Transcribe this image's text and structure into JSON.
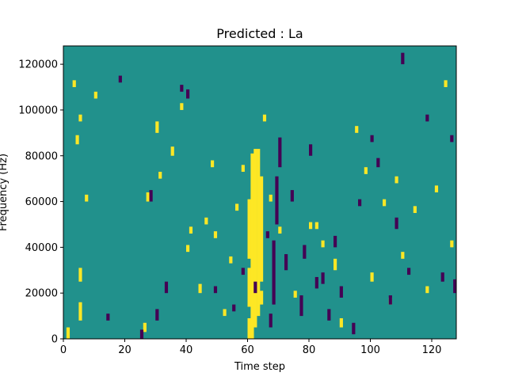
{
  "chart_data": {
    "type": "heatmap",
    "title": "Predicted : La",
    "xlabel": "Time step",
    "ylabel": "Frequency (Hz)",
    "xlim": [
      0,
      128
    ],
    "ylim": [
      0,
      128000
    ],
    "x_ticks": [
      0,
      20,
      40,
      60,
      80,
      100,
      120
    ],
    "y_ticks": [
      0,
      20000,
      40000,
      60000,
      80000,
      100000,
      120000
    ],
    "x_tick_labels": [
      "0",
      "20",
      "40",
      "60",
      "80",
      "100",
      "120"
    ],
    "y_tick_labels": [
      "0",
      "20000",
      "40000",
      "60000",
      "80000",
      "100000",
      "120000"
    ],
    "colors": {
      "background": "#21918c",
      "high": "#fde725",
      "low": "#440154"
    },
    "grid": false,
    "n_freq_bins": 128,
    "bin_width_hz": 1000,
    "high_cells": [
      [
        1,
        0,
        4
      ],
      [
        5,
        8,
        15
      ],
      [
        5,
        25,
        30
      ],
      [
        7,
        60,
        62
      ],
      [
        4,
        85,
        88
      ],
      [
        5,
        95,
        97
      ],
      [
        10,
        105,
        107
      ],
      [
        3,
        110,
        112
      ],
      [
        26,
        3,
        6
      ],
      [
        27,
        60,
        63
      ],
      [
        30,
        90,
        94
      ],
      [
        31,
        70,
        72
      ],
      [
        35,
        80,
        83
      ],
      [
        38,
        100,
        102
      ],
      [
        40,
        38,
        40
      ],
      [
        41,
        46,
        48
      ],
      [
        44,
        20,
        23
      ],
      [
        46,
        50,
        52
      ],
      [
        48,
        75,
        77
      ],
      [
        49,
        44,
        46
      ],
      [
        52,
        10,
        12
      ],
      [
        54,
        33,
        35
      ],
      [
        56,
        56,
        58
      ],
      [
        58,
        73,
        75
      ],
      [
        60,
        0,
        8
      ],
      [
        60,
        14,
        30
      ],
      [
        60,
        35,
        60
      ],
      [
        61,
        0,
        80
      ],
      [
        62,
        5,
        82
      ],
      [
        63,
        10,
        82
      ],
      [
        64,
        15,
        20
      ],
      [
        64,
        25,
        70
      ],
      [
        65,
        95,
        97
      ],
      [
        67,
        60,
        62
      ],
      [
        70,
        46,
        48
      ],
      [
        75,
        18,
        20
      ],
      [
        80,
        48,
        50
      ],
      [
        82,
        48,
        50
      ],
      [
        84,
        40,
        42
      ],
      [
        88,
        30,
        34
      ],
      [
        90,
        5,
        8
      ],
      [
        95,
        90,
        92
      ],
      [
        98,
        72,
        74
      ],
      [
        100,
        25,
        28
      ],
      [
        104,
        58,
        60
      ],
      [
        106,
        15,
        17
      ],
      [
        108,
        68,
        70
      ],
      [
        110,
        35,
        37
      ],
      [
        114,
        55,
        57
      ],
      [
        118,
        20,
        22
      ],
      [
        121,
        64,
        66
      ],
      [
        124,
        110,
        112
      ],
      [
        126,
        40,
        42
      ]
    ],
    "low_cells": [
      [
        14,
        8,
        10
      ],
      [
        18,
        112,
        114
      ],
      [
        25,
        0,
        3
      ],
      [
        28,
        60,
        64
      ],
      [
        30,
        8,
        12
      ],
      [
        33,
        20,
        24
      ],
      [
        38,
        108,
        110
      ],
      [
        40,
        105,
        108
      ],
      [
        49,
        20,
        22
      ],
      [
        55,
        12,
        14
      ],
      [
        58,
        28,
        30
      ],
      [
        62,
        20,
        24
      ],
      [
        66,
        44,
        46
      ],
      [
        67,
        5,
        10
      ],
      [
        68,
        15,
        42
      ],
      [
        69,
        50,
        70
      ],
      [
        70,
        75,
        87
      ],
      [
        72,
        30,
        36
      ],
      [
        74,
        60,
        64
      ],
      [
        77,
        10,
        18
      ],
      [
        78,
        35,
        40
      ],
      [
        80,
        80,
        84
      ],
      [
        82,
        22,
        26
      ],
      [
        84,
        24,
        28
      ],
      [
        86,
        8,
        12
      ],
      [
        88,
        40,
        44
      ],
      [
        90,
        18,
        22
      ],
      [
        94,
        2,
        6
      ],
      [
        96,
        58,
        60
      ],
      [
        100,
        86,
        88
      ],
      [
        102,
        75,
        78
      ],
      [
        106,
        15,
        18
      ],
      [
        108,
        48,
        52
      ],
      [
        112,
        28,
        30
      ],
      [
        110,
        120,
        124
      ],
      [
        118,
        95,
        97
      ],
      [
        123,
        25,
        28
      ],
      [
        126,
        86,
        88
      ],
      [
        127,
        20,
        25
      ]
    ]
  }
}
